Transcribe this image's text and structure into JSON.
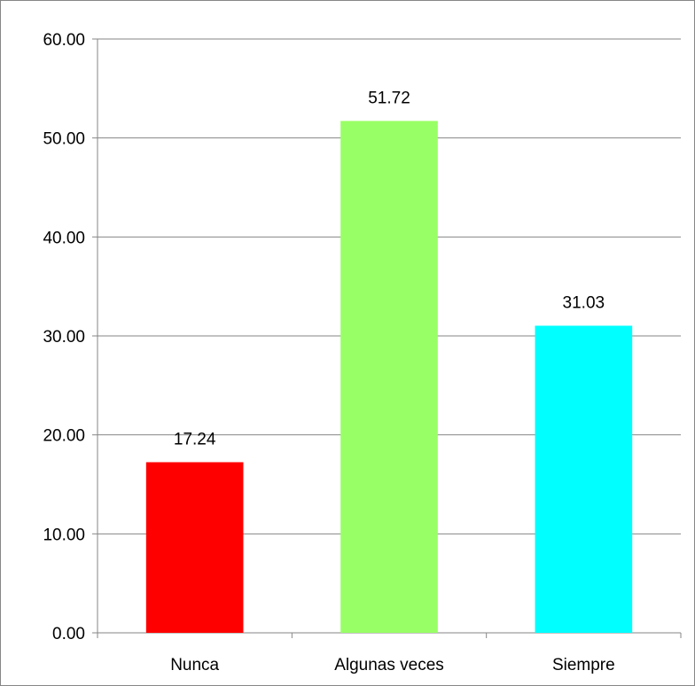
{
  "chart_data": {
    "type": "bar",
    "categories": [
      "Nunca",
      "Algunas veces",
      "Siempre"
    ],
    "values": [
      17.24,
      51.72,
      31.03
    ],
    "value_labels": [
      "17.24",
      "51.72",
      "31.03"
    ],
    "bar_colors": [
      "#ff0000",
      "#99ff66",
      "#00ffff"
    ],
    "ylim": [
      0,
      60
    ],
    "yticks": [
      0,
      10,
      20,
      30,
      40,
      50,
      60
    ],
    "ytick_labels": [
      "0.00",
      "10.00",
      "20.00",
      "30.00",
      "40.00",
      "50.00",
      "60.00"
    ],
    "grid": true,
    "title": "",
    "xlabel": "",
    "ylabel": ""
  }
}
